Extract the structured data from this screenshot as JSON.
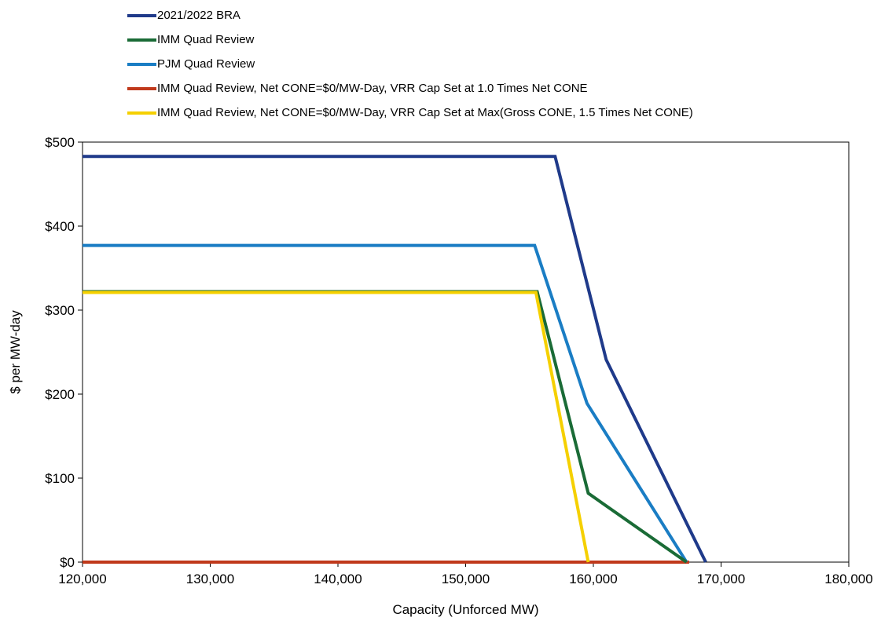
{
  "chart_data": {
    "type": "line",
    "xlabel": "Capacity (Unforced MW)",
    "ylabel": "$ per MW-day",
    "xlim": [
      120000,
      180000
    ],
    "ylim": [
      0,
      500
    ],
    "x_ticks": [
      120000,
      130000,
      140000,
      150000,
      160000,
      170000,
      180000
    ],
    "x_tick_labels": [
      "120,000",
      "130,000",
      "140,000",
      "150,000",
      "160,000",
      "170,000",
      "180,000"
    ],
    "y_ticks": [
      0,
      100,
      200,
      300,
      400,
      500
    ],
    "y_tick_labels": [
      "$0",
      "$100",
      "$200",
      "$300",
      "$400",
      "$500"
    ],
    "grid": false,
    "legend_position": "top-left",
    "series": [
      {
        "name": "2021/2022 BRA",
        "color": "#1f3a8a",
        "points": [
          [
            120000,
            483
          ],
          [
            157000,
            483
          ],
          [
            161000,
            241
          ],
          [
            168800,
            0
          ]
        ]
      },
      {
        "name": "IMM Quad Review",
        "color": "#1a6b36",
        "points": [
          [
            120000,
            322
          ],
          [
            155600,
            322
          ],
          [
            159600,
            82
          ],
          [
            167300,
            0
          ]
        ]
      },
      {
        "name": "PJM Quad Review",
        "color": "#1a7dc4",
        "points": [
          [
            120000,
            377
          ],
          [
            155400,
            377
          ],
          [
            159500,
            189
          ],
          [
            167300,
            0
          ]
        ]
      },
      {
        "name": "IMM Quad Review, Net CONE=$0/MW-Day, VRR Cap Set at 1.0 Times Net CONE",
        "color": "#c0391b",
        "points": [
          [
            120000,
            0
          ],
          [
            167500,
            0
          ]
        ]
      },
      {
        "name": "IMM Quad Review, Net CONE=$0/MW-Day, VRR Cap Set at Max(Gross CONE, 1.5 Times Net CONE)",
        "color": "#f5d000",
        "points": [
          [
            120000,
            321
          ],
          [
            155500,
            321
          ],
          [
            159600,
            0
          ]
        ]
      }
    ]
  }
}
